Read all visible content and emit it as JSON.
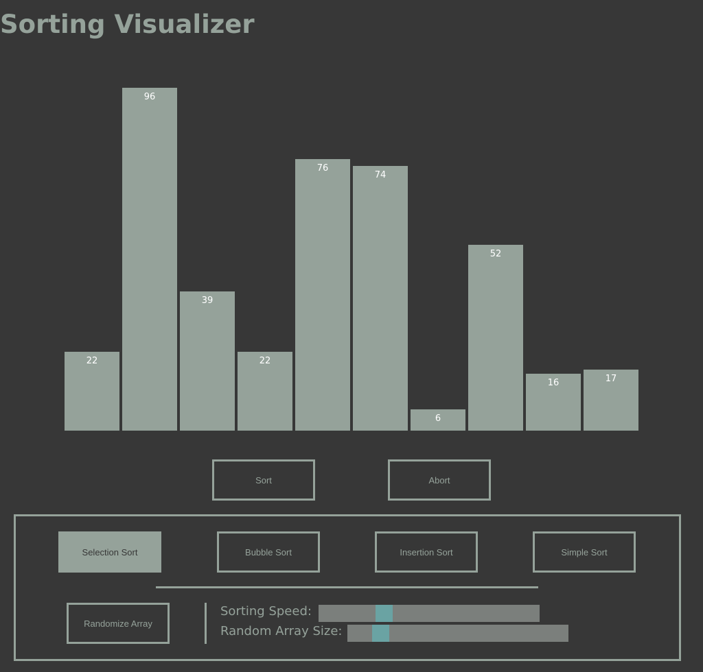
{
  "title": "Sorting Visualizer",
  "bars": [
    22,
    96,
    39,
    22,
    76,
    74,
    6,
    52,
    16,
    17
  ],
  "bar_color": "#95a29a",
  "background_color": "#373737",
  "controls": {
    "sort_label": "Sort",
    "abort_label": "Abort"
  },
  "algorithms": [
    {
      "label": "Selection Sort",
      "active": true
    },
    {
      "label": "Bubble Sort",
      "active": false
    },
    {
      "label": "Insertion Sort",
      "active": false
    },
    {
      "label": "Simple Sort",
      "active": false
    }
  ],
  "randomize_label": "Randomize Array",
  "sliders": {
    "speed": {
      "label": "Sorting Speed:",
      "value": 0.28
    },
    "size": {
      "label": "Random Array Size:",
      "value": 0.12
    }
  },
  "thumb_color": "#6aa3a3"
}
